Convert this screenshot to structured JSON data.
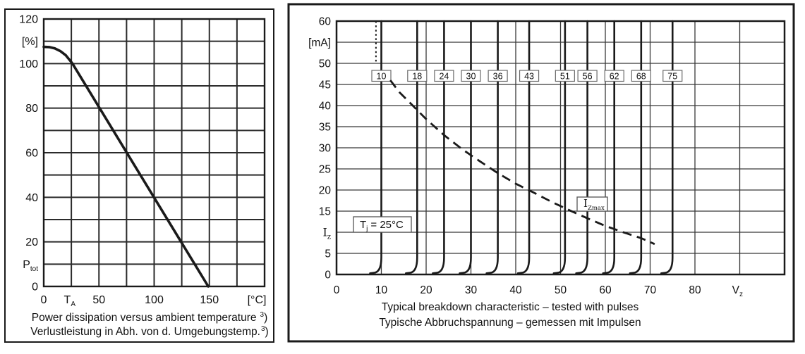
{
  "colors": {
    "ink": "#1a1a1a",
    "grid_left": "#2b2b2b",
    "grid_right": "#383838",
    "panel_border": "#1a1a1a",
    "label_box_border": "#6a6a6a",
    "label_box_fill": "#ffffff",
    "text": "#111111"
  },
  "chart_data": [
    {
      "type": "line",
      "name": "power-dissipation-derating",
      "xlim": [
        0,
        200
      ],
      "ylim": [
        0,
        120
      ],
      "x_grid_step": 25,
      "y_grid_step": 10,
      "grid": true,
      "x_ticks": [
        {
          "v": 0,
          "label": "0"
        },
        {
          "v": 23.5,
          "label": "T",
          "sub": "A"
        },
        {
          "v": 50,
          "label": "50"
        },
        {
          "v": 100,
          "label": "100"
        },
        {
          "v": 150,
          "label": "150"
        },
        {
          "v": 193,
          "label": "[°C]"
        }
      ],
      "y_ticks": [
        {
          "v": 120,
          "label": "120"
        },
        {
          "v": 110,
          "label": "[%]"
        },
        {
          "v": 100,
          "label": "100"
        },
        {
          "v": 80,
          "label": "80"
        },
        {
          "v": 60,
          "label": "60"
        },
        {
          "v": 40,
          "label": "40"
        },
        {
          "v": 20,
          "label": "20"
        },
        {
          "v": 10,
          "label": "P",
          "sub": "tot"
        },
        {
          "v": 0,
          "label": "0"
        }
      ],
      "series": [
        {
          "name": "Ptot-vs-TA",
          "points": [
            [
              0,
              107.5
            ],
            [
              5,
              107.4
            ],
            [
              10,
              106.8
            ],
            [
              15,
              105.6
            ],
            [
              20,
              103.7
            ],
            [
              26,
              100
            ],
            [
              149,
              0
            ]
          ]
        }
      ],
      "caption_en": {
        "text": "Power dissipation versus ambient temperature",
        "sup": "3",
        "close": ")"
      },
      "caption_de": {
        "text": "Verlustleistung in Abh. von d. Umgebungstemp.",
        "sup": "3",
        "close": ")"
      }
    },
    {
      "type": "line",
      "name": "zener-breakdown-characteristic",
      "xlim": [
        0,
        100
      ],
      "ylim": [
        0,
        60
      ],
      "x_grid_step": 10,
      "y_grid_step": 5,
      "grid": true,
      "x_ticks": [
        {
          "v": 0,
          "label": "0"
        },
        {
          "v": 10,
          "label": "10"
        },
        {
          "v": 20,
          "label": "20"
        },
        {
          "v": 30,
          "label": "30"
        },
        {
          "v": 40,
          "label": "40"
        },
        {
          "v": 50,
          "label": "50"
        },
        {
          "v": 60,
          "label": "60"
        },
        {
          "v": 70,
          "label": "70"
        },
        {
          "v": 80,
          "label": "80"
        },
        {
          "v": 89.5,
          "label": "V",
          "sub": "z"
        }
      ],
      "y_ticks": [
        {
          "v": 60,
          "label": "60"
        },
        {
          "v": 55,
          "label": "[mA]"
        },
        {
          "v": 50,
          "label": "50"
        },
        {
          "v": 45,
          "label": "45"
        },
        {
          "v": 40,
          "label": "40"
        },
        {
          "v": 35,
          "label": "35"
        },
        {
          "v": 30,
          "label": "30"
        },
        {
          "v": 25,
          "label": "25"
        },
        {
          "v": 20,
          "label": "20"
        },
        {
          "v": 15,
          "label": "15"
        },
        {
          "v": 10,
          "label": "I",
          "sub": "z",
          "serif": true
        },
        {
          "v": 5,
          "label": "5"
        },
        {
          "v": 0,
          "label": "0"
        }
      ],
      "zener_voltages": [
        10,
        18,
        24,
        30,
        36,
        43,
        51,
        56,
        62,
        68,
        75
      ],
      "zener_voltage_labels": [
        "10",
        "18",
        "24",
        "30",
        "36",
        "43",
        "51",
        "56",
        "62",
        "68",
        "75"
      ],
      "dotted_line": {
        "x": 8.8,
        "y_from": 50.3,
        "y_to": 60
      },
      "izmax_curve": {
        "name": "IZmax",
        "points": [
          [
            12,
            46
          ],
          [
            14,
            43.2
          ],
          [
            17,
            40
          ],
          [
            20,
            36.8
          ],
          [
            24,
            33
          ],
          [
            28,
            29.7
          ],
          [
            32,
            26.8
          ],
          [
            36,
            24
          ],
          [
            40,
            21.5
          ],
          [
            44,
            19.4
          ],
          [
            48,
            17.2
          ],
          [
            52,
            15.2
          ],
          [
            56,
            13.3
          ],
          [
            60,
            11.5
          ],
          [
            64,
            10
          ],
          [
            68,
            8.6
          ],
          [
            71,
            7.2
          ]
        ]
      },
      "labels": {
        "tj": {
          "t": "T",
          "sub": "j",
          "rest": "= 25°C"
        },
        "izmax": {
          "t": "I",
          "sub": "Zmax"
        }
      },
      "caption_en": "Typical breakdown characteristic – tested with pulses",
      "caption_de": "Typische Abbruchspannung – gemessen mit Impulsen"
    }
  ]
}
